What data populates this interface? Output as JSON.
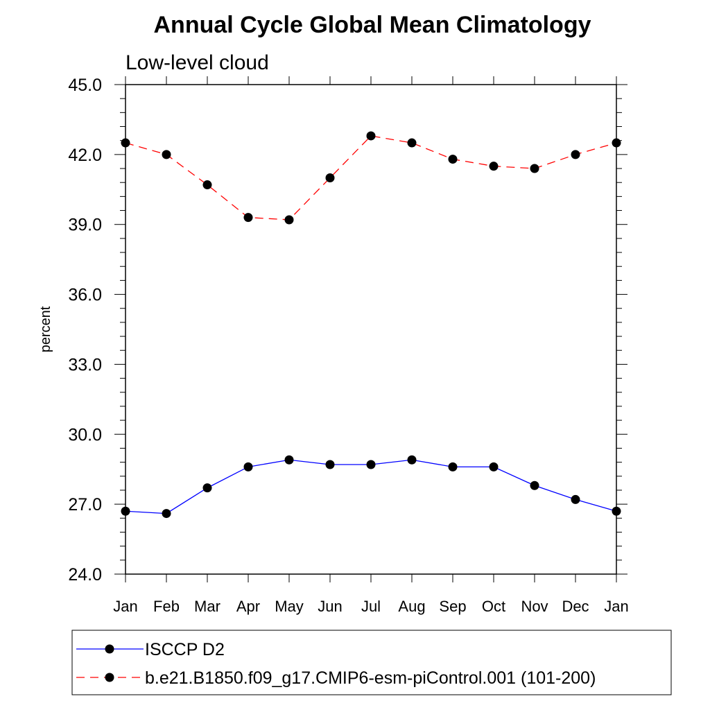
{
  "chart_data": {
    "type": "line",
    "title": "Annual Cycle Global Mean Climatology",
    "subtitle": "Low-level cloud",
    "xlabel": "",
    "ylabel": "percent",
    "ylim": [
      24.0,
      45.0
    ],
    "yticks": [
      "24.0",
      "27.0",
      "30.0",
      "33.0",
      "36.0",
      "39.0",
      "42.0",
      "45.0"
    ],
    "categories": [
      "Jan",
      "Feb",
      "Mar",
      "Apr",
      "May",
      "Jun",
      "Jul",
      "Aug",
      "Sep",
      "Oct",
      "Nov",
      "Dec",
      "Jan"
    ],
    "grid": false,
    "legend_position": "bottom",
    "series": [
      {
        "name": "ISCCP D2",
        "color": "#0000ff",
        "dash": "solid",
        "marker": "filled-circle",
        "values": [
          26.7,
          26.6,
          27.7,
          28.6,
          28.9,
          28.7,
          28.7,
          28.9,
          28.6,
          28.6,
          27.8,
          27.2,
          26.7
        ]
      },
      {
        "name": "b.e21.B1850.f09_g17.CMIP6-esm-piControl.001 (101-200)",
        "color": "#ff0000",
        "dash": "dashed",
        "marker": "filled-circle",
        "values": [
          42.5,
          42.0,
          40.7,
          39.3,
          39.2,
          41.0,
          42.8,
          42.5,
          41.8,
          41.5,
          41.4,
          42.0,
          42.5
        ]
      }
    ]
  }
}
